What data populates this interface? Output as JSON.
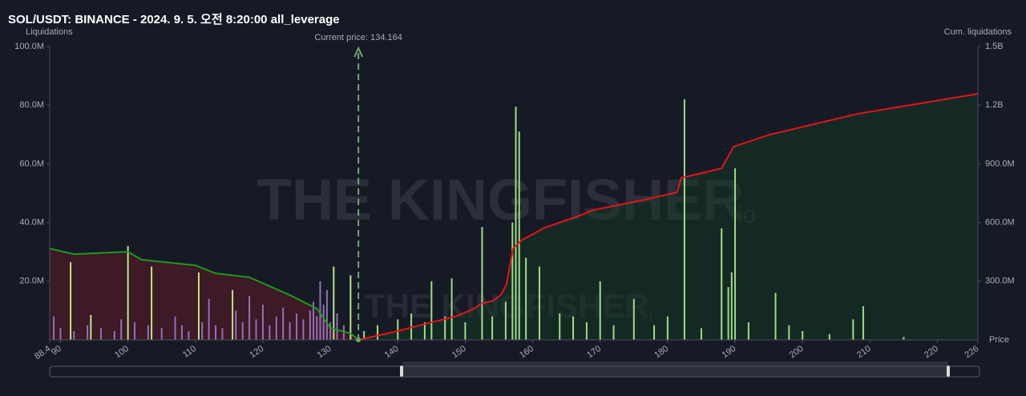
{
  "chart_data": {
    "type": "bar",
    "title": "SOL/USDT: BINANCE - 2024. 9. 5. 오전 8:20:00 all_leverage",
    "ylabel": "Liquidations",
    "y2label": "Cum. liquidations",
    "xlabel": "Price",
    "current_price": {
      "value": 134.164,
      "label": "Current price: 134.164"
    },
    "watermark": [
      "THE KINGFISHER",
      "io"
    ],
    "xlim": [
      88.4,
      226
    ],
    "xticks": [
      88.4,
      90,
      100,
      110,
      120,
      130,
      140,
      150,
      160,
      170,
      180,
      190,
      200,
      210,
      220,
      226
    ],
    "ylim": [
      0,
      100000000
    ],
    "yticks": [
      {
        "value": 20000000,
        "label": "20.0M"
      },
      {
        "value": 40000000,
        "label": "40.0M"
      },
      {
        "value": 60000000,
        "label": "60.0M"
      },
      {
        "value": 80000000,
        "label": "80.0M"
      },
      {
        "value": 100000000,
        "label": "100.0M"
      }
    ],
    "y2lim": [
      0,
      1500000000
    ],
    "y2ticks": [
      {
        "value": 300000000,
        "label": "300.0M"
      },
      {
        "value": 600000000,
        "label": "600.0M"
      },
      {
        "value": 900000000,
        "label": "900.0M"
      },
      {
        "value": 1200000000,
        "label": "1.2B"
      },
      {
        "value": 1500000000,
        "label": "1.5B"
      }
    ],
    "series": [
      {
        "type": "bar",
        "color": "#8f72b8",
        "x": [
          89,
          90,
          92,
          94,
          96,
          98,
          99,
          101,
          103,
          105,
          107,
          108,
          109,
          111,
          112,
          113,
          114,
          116,
          117,
          118,
          119,
          120,
          121,
          122,
          123,
          124,
          125,
          126,
          127,
          127.5,
          128,
          128.5,
          129,
          129.5,
          130,
          131,
          132,
          133
        ],
        "values": [
          8000000,
          4000000,
          3000000,
          5000000,
          4000000,
          3000000,
          7000000,
          6000000,
          5000000,
          4000000,
          8000000,
          5000000,
          3000000,
          6000000,
          14000000,
          5000000,
          4000000,
          10000000,
          6000000,
          15000000,
          7000000,
          12000000,
          5000000,
          8000000,
          11000000,
          6000000,
          9000000,
          7000000,
          10000000,
          13000000,
          8000000,
          20000000,
          12000000,
          17000000,
          6000000,
          9000000,
          5000000,
          3000000
        ]
      },
      {
        "type": "bar",
        "color": "#b8e68a",
        "x": [
          91.5,
          94.5,
          100,
          103.5,
          110.5,
          115.5,
          130.5,
          133
        ],
        "values": [
          26500000,
          8500000,
          32000000,
          25000000,
          23000000,
          17000000,
          25000000,
          22000000
        ]
      },
      {
        "type": "bar",
        "color": "#9fdc84",
        "x": [
          135,
          137,
          140,
          142,
          144,
          145,
          147,
          148,
          150,
          152.5,
          154,
          156,
          157,
          157.5,
          158,
          159,
          161,
          164,
          166,
          168,
          170,
          172,
          175,
          178,
          180,
          182.5,
          185,
          188,
          189,
          189.5,
          190,
          192,
          196,
          198,
          200,
          204,
          207.5,
          209,
          215
        ],
        "values": [
          3000000,
          5000000,
          7000000,
          9000000,
          6000000,
          20000000,
          8000000,
          21000000,
          6000000,
          38500000,
          8000000,
          13000000,
          40000000,
          79500000,
          71000000,
          28000000,
          25000000,
          9000000,
          8000000,
          6000000,
          20000000,
          5000000,
          14000000,
          5000000,
          8000000,
          82000000,
          4000000,
          38000000,
          18000000,
          23000000,
          58500000,
          6000000,
          16000000,
          5000000,
          3000000,
          2000000,
          7000000,
          11500000,
          1000000
        ]
      },
      {
        "type": "line",
        "axis": "y2",
        "color": "#1f9a1f",
        "fill": "rgba(110,25,40,0.45)",
        "x": [
          88.4,
          92,
          100,
          102,
          110,
          113,
          118,
          124,
          128,
          130,
          133,
          134.164
        ],
        "values": [
          467000000,
          438000000,
          451000000,
          410000000,
          381000000,
          340000000,
          320000000,
          229000000,
          160000000,
          61000000,
          33000000,
          0
        ]
      },
      {
        "type": "line",
        "axis": "y2",
        "color": "#e3141e",
        "fill": "rgba(20,60,35,0.45)",
        "x": [
          134.164,
          140,
          145,
          148.5,
          151.1,
          152.3,
          154.1,
          155.3,
          156.1,
          157.1,
          158.3,
          161.8,
          166.6,
          169,
          176.1,
          181.4,
          182,
          188,
          189.8,
          195.1,
          208.2,
          226
        ],
        "values": [
          0,
          45000000,
          90000000,
          119000000,
          156000000,
          184000000,
          200000000,
          230000000,
          283000000,
          467000000,
          508000000,
          574000000,
          631000000,
          664000000,
          713000000,
          754000000,
          828000000,
          877000000,
          988000000,
          1049000000,
          1156000000,
          1258000000
        ]
      }
    ]
  }
}
